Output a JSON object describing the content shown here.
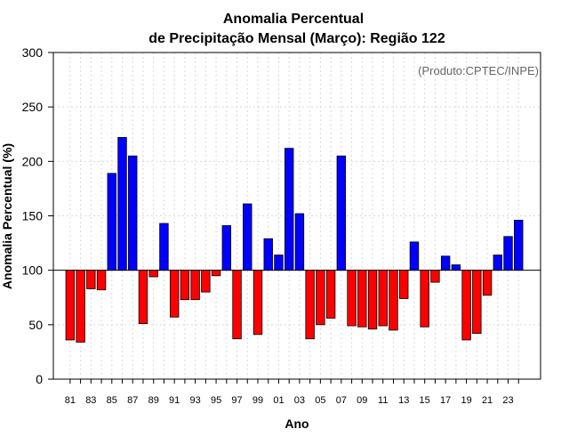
{
  "chart_data": {
    "type": "bar",
    "title_line1": "Anomalia Percentual",
    "title_line2": "de Precipitação Mensal (Março): Região 122",
    "credit": "(Produto:CPTEC/INPE)",
    "xlabel": "Ano",
    "ylabel": "Anomalia Percentual (%)",
    "ylim": [
      0,
      300
    ],
    "yticks": [
      0,
      50,
      100,
      150,
      200,
      250,
      300
    ],
    "baseline": 100,
    "grid": true,
    "colors": {
      "above": "#0000ff",
      "below": "#ff0000",
      "edge": "#000000",
      "grid": "#d9d9d9"
    },
    "xtick_labels": [
      "81",
      "83",
      "85",
      "87",
      "89",
      "91",
      "93",
      "95",
      "97",
      "99",
      "01",
      "03",
      "05",
      "07",
      "09",
      "11",
      "13",
      "15",
      "17",
      "19",
      "21",
      "23"
    ],
    "categories": [
      "81",
      "82",
      "83",
      "84",
      "85",
      "86",
      "87",
      "88",
      "89",
      "90",
      "91",
      "92",
      "93",
      "94",
      "95",
      "96",
      "97",
      "98",
      "99",
      "00",
      "01",
      "02",
      "03",
      "04",
      "05",
      "06",
      "07",
      "08",
      "09",
      "10",
      "11",
      "12",
      "13",
      "14",
      "15",
      "16",
      "17",
      "18",
      "19",
      "20",
      "21",
      "22",
      "23",
      "24"
    ],
    "values": [
      36,
      34,
      83,
      82,
      189,
      222,
      205,
      51,
      94,
      143,
      57,
      73,
      73,
      80,
      95,
      141,
      37,
      161,
      41,
      129,
      114,
      212,
      152,
      37,
      50,
      56,
      205,
      49,
      48,
      46,
      49,
      45,
      74,
      126,
      48,
      89,
      113,
      105,
      36,
      42,
      77,
      114,
      131,
      146
    ]
  }
}
